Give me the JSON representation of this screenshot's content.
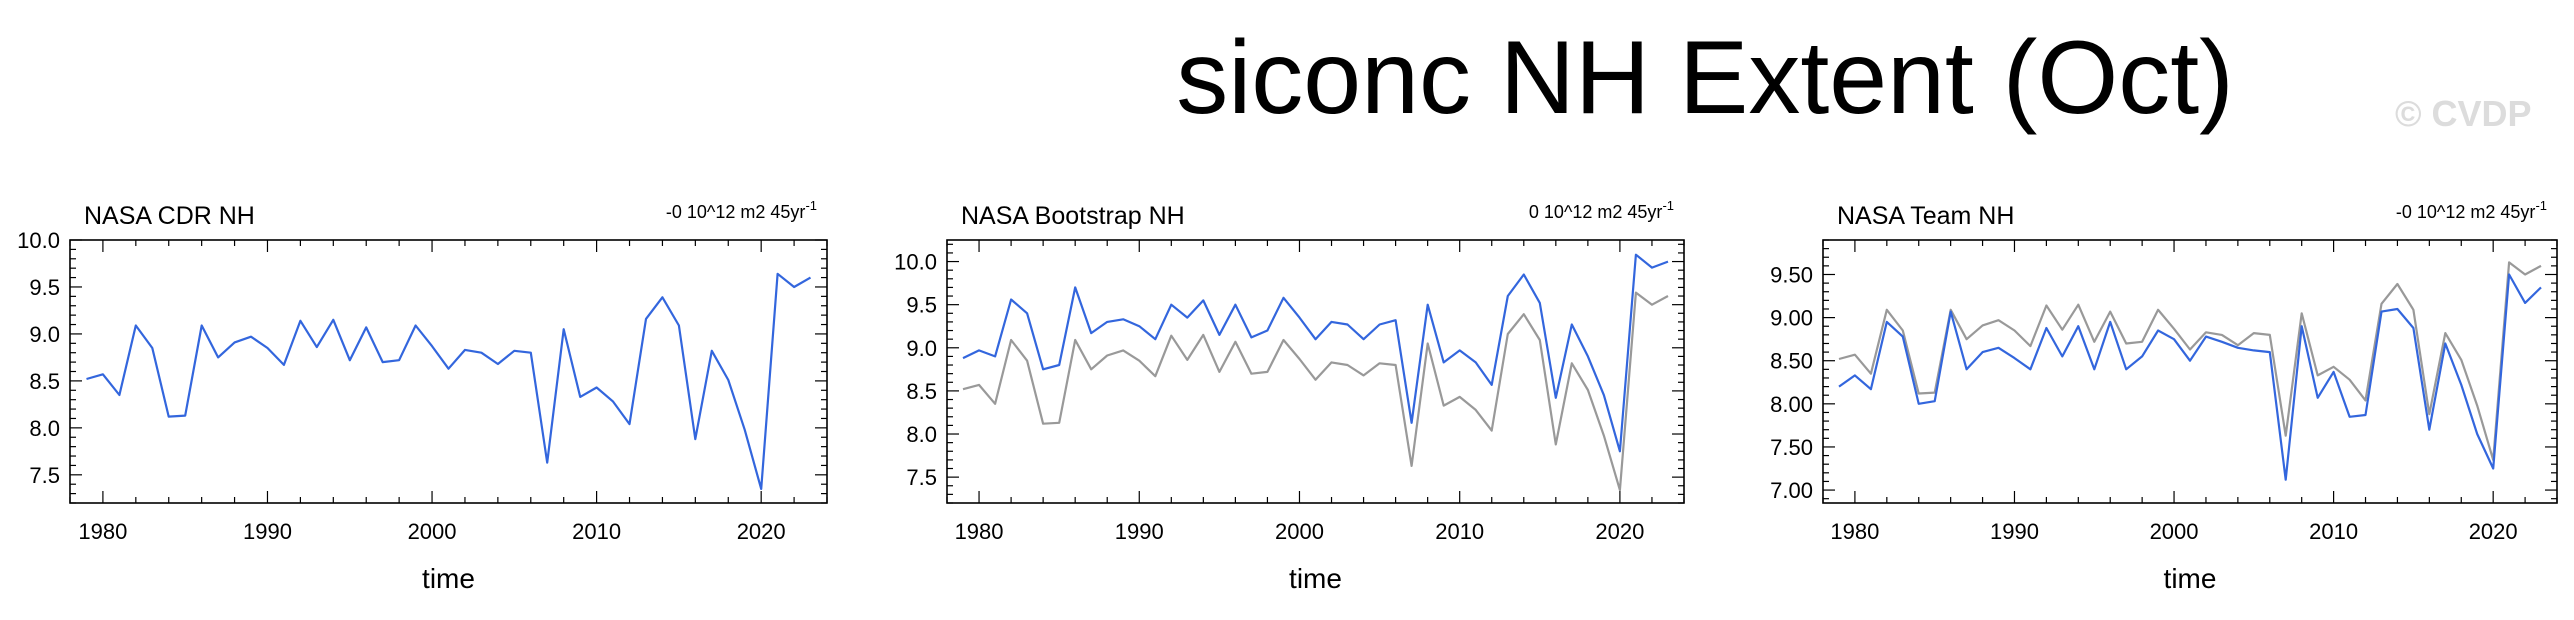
{
  "title": "siconc NH Extent (Oct)",
  "watermark": "© CVDP",
  "colors": {
    "primary_series": "#3366dd",
    "reference_series": "#999999",
    "axes": "#000000"
  },
  "chart_data": [
    {
      "type": "line",
      "title": "NASA CDR NH",
      "trend": "-0 10^12 m2 45yr",
      "trend_superscript": "-1",
      "xlabel": "time",
      "ylabel": "",
      "xlim": [
        1978,
        2024
      ],
      "ylim": [
        7.2,
        10.0
      ],
      "xticks": [
        1980,
        1990,
        2000,
        2010,
        2020
      ],
      "yticks": [
        7.5,
        8.0,
        8.5,
        9.0,
        9.5,
        10.0
      ],
      "ytick_labels": [
        "7.5",
        "8.0",
        "8.5",
        "9.0",
        "9.5",
        "10.0"
      ],
      "series": [
        {
          "role": "primary",
          "x": [
            1979,
            1980,
            1981,
            1982,
            1983,
            1984,
            1985,
            1986,
            1987,
            1988,
            1989,
            1990,
            1991,
            1992,
            1993,
            1994,
            1995,
            1996,
            1997,
            1998,
            1999,
            2000,
            2001,
            2002,
            2003,
            2004,
            2005,
            2006,
            2007,
            2008,
            2009,
            2010,
            2011,
            2012,
            2013,
            2014,
            2015,
            2016,
            2017,
            2018,
            2019,
            2020,
            2021,
            2022,
            2023
          ],
          "values": [
            8.52,
            8.57,
            8.35,
            9.09,
            8.85,
            8.12,
            8.13,
            9.09,
            8.75,
            8.91,
            8.97,
            8.85,
            8.67,
            9.14,
            8.86,
            9.15,
            8.72,
            9.07,
            8.7,
            8.72,
            9.09,
            8.87,
            8.63,
            8.83,
            8.8,
            8.68,
            8.82,
            8.8,
            7.63,
            9.05,
            8.33,
            8.43,
            8.28,
            8.04,
            9.16,
            9.39,
            9.09,
            7.88,
            8.82,
            8.51,
            7.98,
            7.35,
            9.64,
            9.5,
            9.6
          ]
        }
      ]
    },
    {
      "type": "line",
      "title": "NASA Bootstrap NH",
      "trend": "0 10^12 m2 45yr",
      "trend_superscript": "-1",
      "xlabel": "time",
      "ylabel": "",
      "xlim": [
        1978,
        2024
      ],
      "ylim": [
        7.2,
        10.25
      ],
      "xticks": [
        1980,
        1990,
        2000,
        2010,
        2020
      ],
      "yticks": [
        7.5,
        8.0,
        8.5,
        9.0,
        9.5,
        10.0
      ],
      "ytick_labels": [
        "7.5",
        "8.0",
        "8.5",
        "9.0",
        "9.5",
        "10.0"
      ],
      "series": [
        {
          "role": "primary",
          "x": [
            1979,
            1980,
            1981,
            1982,
            1983,
            1984,
            1985,
            1986,
            1987,
            1988,
            1989,
            1990,
            1991,
            1992,
            1993,
            1994,
            1995,
            1996,
            1997,
            1998,
            1999,
            2000,
            2001,
            2002,
            2003,
            2004,
            2005,
            2006,
            2007,
            2008,
            2009,
            2010,
            2011,
            2012,
            2013,
            2014,
            2015,
            2016,
            2017,
            2018,
            2019,
            2020,
            2021,
            2022,
            2023
          ],
          "values": [
            8.88,
            8.97,
            8.9,
            9.56,
            9.4,
            8.75,
            8.8,
            9.7,
            9.17,
            9.3,
            9.33,
            9.25,
            9.1,
            9.5,
            9.35,
            9.55,
            9.15,
            9.5,
            9.12,
            9.2,
            9.58,
            9.35,
            9.1,
            9.3,
            9.27,
            9.1,
            9.27,
            9.32,
            8.13,
            9.5,
            8.83,
            8.97,
            8.83,
            8.57,
            9.6,
            9.85,
            9.52,
            8.42,
            9.27,
            8.9,
            8.45,
            7.8,
            10.08,
            9.93,
            10.0
          ]
        },
        {
          "role": "reference",
          "x": [
            1979,
            1980,
            1981,
            1982,
            1983,
            1984,
            1985,
            1986,
            1987,
            1988,
            1989,
            1990,
            1991,
            1992,
            1993,
            1994,
            1995,
            1996,
            1997,
            1998,
            1999,
            2000,
            2001,
            2002,
            2003,
            2004,
            2005,
            2006,
            2007,
            2008,
            2009,
            2010,
            2011,
            2012,
            2013,
            2014,
            2015,
            2016,
            2017,
            2018,
            2019,
            2020,
            2021,
            2022,
            2023
          ],
          "values": [
            8.52,
            8.57,
            8.35,
            9.09,
            8.85,
            8.12,
            8.13,
            9.09,
            8.75,
            8.91,
            8.97,
            8.85,
            8.67,
            9.14,
            8.86,
            9.15,
            8.72,
            9.07,
            8.7,
            8.72,
            9.09,
            8.87,
            8.63,
            8.83,
            8.8,
            8.68,
            8.82,
            8.8,
            7.63,
            9.05,
            8.33,
            8.43,
            8.28,
            8.04,
            9.16,
            9.39,
            9.09,
            7.88,
            8.82,
            8.51,
            7.98,
            7.35,
            9.64,
            9.5,
            9.6
          ]
        }
      ]
    },
    {
      "type": "line",
      "title": "NASA Team NH",
      "trend": "-0 10^12 m2 45yr",
      "trend_superscript": "-1",
      "xlabel": "time",
      "ylabel": "",
      "xlim": [
        1978,
        2024
      ],
      "ylim": [
        6.85,
        9.9
      ],
      "xticks": [
        1980,
        1990,
        2000,
        2010,
        2020
      ],
      "yticks": [
        7.0,
        7.5,
        8.0,
        8.5,
        9.0,
        9.5
      ],
      "ytick_labels": [
        "7.00",
        "7.50",
        "8.00",
        "8.50",
        "9.00",
        "9.50"
      ],
      "series": [
        {
          "role": "primary",
          "x": [
            1979,
            1980,
            1981,
            1982,
            1983,
            1984,
            1985,
            1986,
            1987,
            1988,
            1989,
            1990,
            1991,
            1992,
            1993,
            1994,
            1995,
            1996,
            1997,
            1998,
            1999,
            2000,
            2001,
            2002,
            2003,
            2004,
            2005,
            2006,
            2007,
            2008,
            2009,
            2010,
            2011,
            2012,
            2013,
            2014,
            2015,
            2016,
            2017,
            2018,
            2019,
            2020,
            2021,
            2022,
            2023
          ],
          "values": [
            8.2,
            8.33,
            8.17,
            8.95,
            8.78,
            8.0,
            8.03,
            9.07,
            8.4,
            8.6,
            8.65,
            8.53,
            8.4,
            8.88,
            8.55,
            8.9,
            8.4,
            8.95,
            8.4,
            8.55,
            8.85,
            8.75,
            8.5,
            8.78,
            8.72,
            8.65,
            8.62,
            8.6,
            7.12,
            8.9,
            8.07,
            8.37,
            7.85,
            7.87,
            9.07,
            9.1,
            8.88,
            7.7,
            8.7,
            8.22,
            7.65,
            7.25,
            9.5,
            9.17,
            9.35
          ]
        },
        {
          "role": "reference",
          "x": [
            1979,
            1980,
            1981,
            1982,
            1983,
            1984,
            1985,
            1986,
            1987,
            1988,
            1989,
            1990,
            1991,
            1992,
            1993,
            1994,
            1995,
            1996,
            1997,
            1998,
            1999,
            2000,
            2001,
            2002,
            2003,
            2004,
            2005,
            2006,
            2007,
            2008,
            2009,
            2010,
            2011,
            2012,
            2013,
            2014,
            2015,
            2016,
            2017,
            2018,
            2019,
            2020,
            2021,
            2022,
            2023
          ],
          "values": [
            8.52,
            8.57,
            8.35,
            9.09,
            8.85,
            8.12,
            8.13,
            9.09,
            8.75,
            8.91,
            8.97,
            8.85,
            8.67,
            9.14,
            8.86,
            9.15,
            8.72,
            9.07,
            8.7,
            8.72,
            9.09,
            8.87,
            8.63,
            8.83,
            8.8,
            8.68,
            8.82,
            8.8,
            7.63,
            9.05,
            8.33,
            8.43,
            8.28,
            8.04,
            9.16,
            9.39,
            9.09,
            7.88,
            8.82,
            8.51,
            7.98,
            7.35,
            9.64,
            9.5,
            9.6
          ]
        }
      ]
    }
  ]
}
